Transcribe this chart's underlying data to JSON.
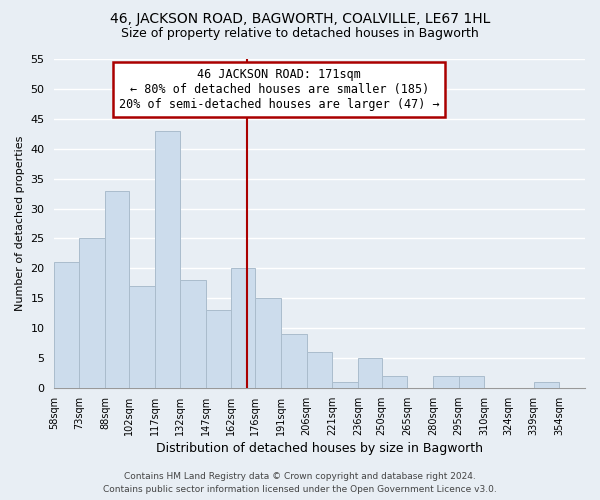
{
  "title": "46, JACKSON ROAD, BAGWORTH, COALVILLE, LE67 1HL",
  "subtitle": "Size of property relative to detached houses in Bagworth",
  "xlabel": "Distribution of detached houses by size in Bagworth",
  "ylabel": "Number of detached properties",
  "bar_color": "#ccdcec",
  "bar_edge_color": "#aabccc",
  "background_color": "#e8eef4",
  "plot_bg_color": "#e8eef4",
  "grid_color": "#ffffff",
  "bin_labels": [
    "58sqm",
    "73sqm",
    "88sqm",
    "102sqm",
    "117sqm",
    "132sqm",
    "147sqm",
    "162sqm",
    "176sqm",
    "191sqm",
    "206sqm",
    "221sqm",
    "236sqm",
    "250sqm",
    "265sqm",
    "280sqm",
    "295sqm",
    "310sqm",
    "324sqm",
    "339sqm",
    "354sqm"
  ],
  "bar_heights": [
    21,
    25,
    33,
    17,
    43,
    18,
    13,
    20,
    15,
    9,
    6,
    1,
    5,
    2,
    0,
    2,
    2,
    0,
    0,
    1,
    0
  ],
  "ylim": [
    0,
    55
  ],
  "yticks": [
    0,
    5,
    10,
    15,
    20,
    25,
    30,
    35,
    40,
    45,
    50,
    55
  ],
  "property_line_x": 171,
  "property_line_label": "46 JACKSON ROAD: 171sqm",
  "annotation_line1": "← 80% of detached houses are smaller (185)",
  "annotation_line2": "20% of semi-detached houses are larger (47) →",
  "bin_edges": [
    58,
    73,
    88,
    102,
    117,
    132,
    147,
    162,
    176,
    191,
    206,
    221,
    236,
    250,
    265,
    280,
    295,
    310,
    324,
    339,
    354,
    369
  ],
  "footer_line1": "Contains HM Land Registry data © Crown copyright and database right 2024.",
  "footer_line2": "Contains public sector information licensed under the Open Government Licence v3.0.",
  "annotation_box_edge_color": "#aa0000",
  "property_line_color": "#aa0000",
  "title_fontsize": 10,
  "subtitle_fontsize": 9,
  "ylabel_fontsize": 8,
  "xlabel_fontsize": 9,
  "tick_fontsize": 8,
  "xtick_fontsize": 7,
  "footer_fontsize": 6.5,
  "annotation_fontsize": 8.5
}
